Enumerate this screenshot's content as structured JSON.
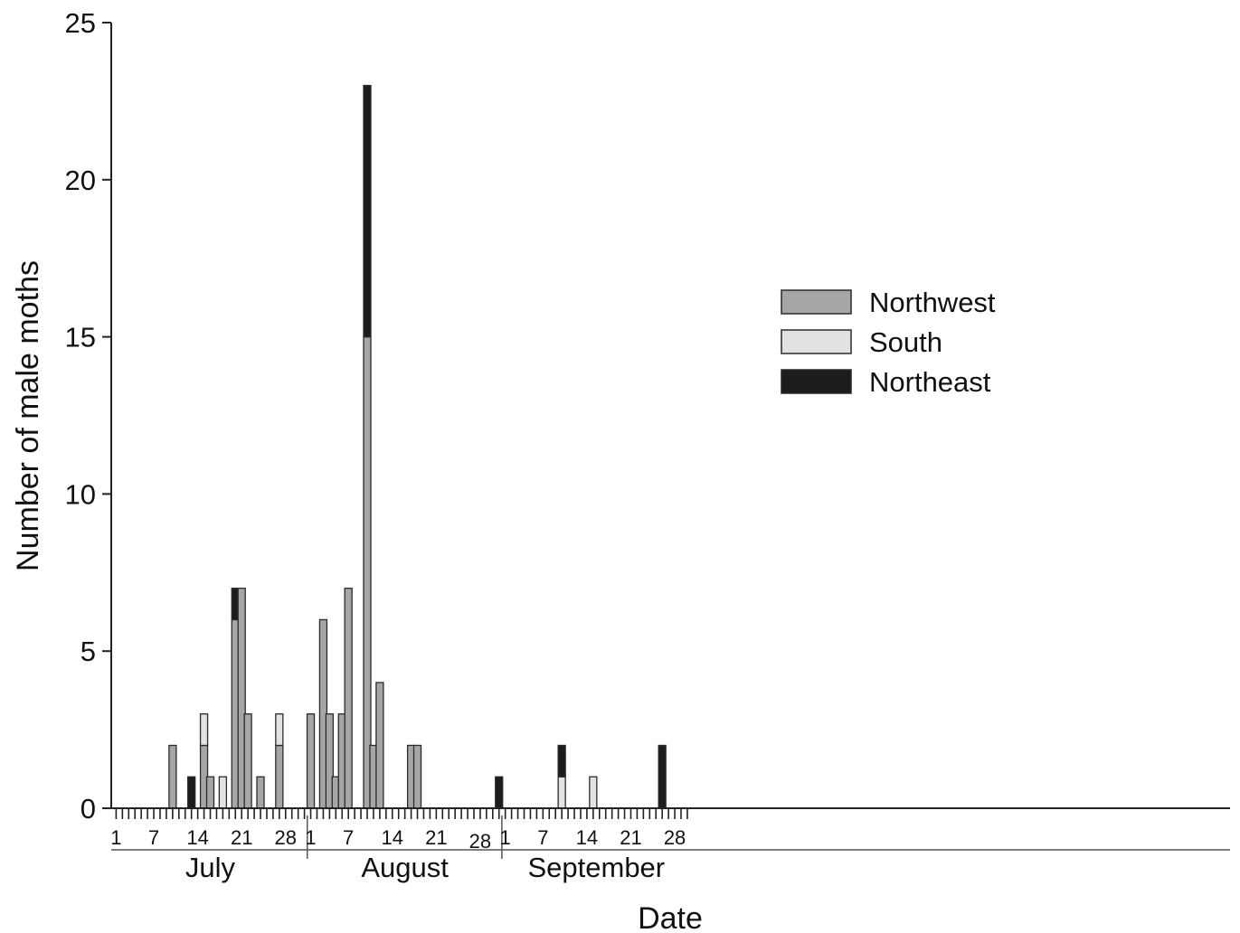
{
  "chart_data": {
    "type": "bar",
    "stacked": true,
    "ylabel": "Number of male moths",
    "xlabel": "Date",
    "ylim": [
      0,
      25
    ],
    "yticks": [
      0,
      5,
      10,
      15,
      20,
      25
    ],
    "legend_position": "right-upper",
    "colors": {
      "Northwest": "#a6a6a6",
      "South": "#e2e2e2",
      "Northeast": "#1c1c1c"
    },
    "months": [
      {
        "name": "July",
        "days": 31,
        "tick_labels": [
          "1",
          "7",
          "14",
          "21",
          "28"
        ]
      },
      {
        "name": "August",
        "days": 31,
        "tick_labels": [
          "1",
          "7",
          "14",
          "21",
          "28"
        ]
      },
      {
        "name": "September",
        "days": 30,
        "tick_labels": [
          "1",
          "7",
          "14",
          "21",
          "28"
        ]
      }
    ],
    "series": [
      {
        "name": "Northwest",
        "points": [
          {
            "date": "July 10",
            "value": 2
          },
          {
            "date": "July 15",
            "value": 2
          },
          {
            "date": "July 16",
            "value": 1
          },
          {
            "date": "July 20",
            "value": 6
          },
          {
            "date": "July 21",
            "value": 7
          },
          {
            "date": "July 22",
            "value": 3
          },
          {
            "date": "July 24",
            "value": 1
          },
          {
            "date": "July 27",
            "value": 2
          },
          {
            "date": "August 1",
            "value": 3
          },
          {
            "date": "August 3",
            "value": 6
          },
          {
            "date": "August 4",
            "value": 3
          },
          {
            "date": "August 5",
            "value": 1
          },
          {
            "date": "August 6",
            "value": 3
          },
          {
            "date": "August 7",
            "value": 7
          },
          {
            "date": "August 10",
            "value": 15
          },
          {
            "date": "August 11",
            "value": 2
          },
          {
            "date": "August 12",
            "value": 4
          },
          {
            "date": "August 17",
            "value": 2
          },
          {
            "date": "August 18",
            "value": 2
          }
        ]
      },
      {
        "name": "South",
        "points": [
          {
            "date": "July 15",
            "value": 1
          },
          {
            "date": "July 18",
            "value": 1
          },
          {
            "date": "July 27",
            "value": 1
          },
          {
            "date": "September 10",
            "value": 1
          },
          {
            "date": "September 15",
            "value": 1
          }
        ]
      },
      {
        "name": "Northeast",
        "points": [
          {
            "date": "July 13",
            "value": 1
          },
          {
            "date": "July 20",
            "value": 1
          },
          {
            "date": "August 10",
            "value": 8
          },
          {
            "date": "August 31",
            "value": 1
          },
          {
            "date": "September 10",
            "value": 1
          },
          {
            "date": "September 26",
            "value": 2
          }
        ]
      }
    ]
  }
}
